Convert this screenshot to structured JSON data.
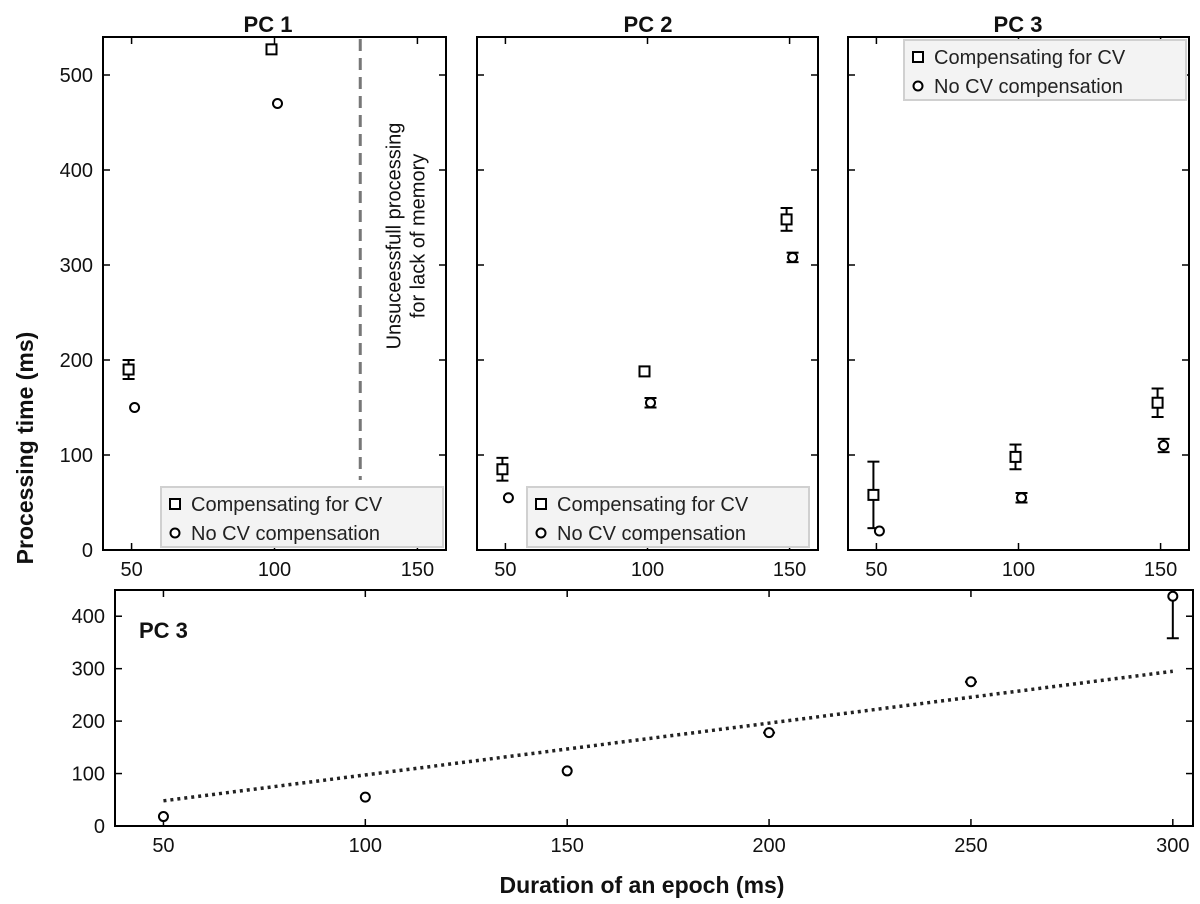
{
  "figure": {
    "ylabel": "Processing time (ms)",
    "xlabel": "Duration of an epoch (ms)"
  },
  "chart_data": [
    {
      "type": "scatter",
      "title": "PC 1",
      "xlim": [
        40,
        160
      ],
      "ylim": [
        0,
        540
      ],
      "xticks": [
        "50",
        "100",
        "150"
      ],
      "yticks": [
        "0",
        "100",
        "200",
        "300",
        "400",
        "500"
      ],
      "annotation": {
        "x": 130,
        "lines": [
          "Unsuceessfull  processing",
          "for lack of memory"
        ]
      },
      "legend": {
        "position": "bottom-right",
        "entries": [
          "Compensating  for CV",
          "No CV compensation"
        ]
      },
      "series": [
        {
          "name": "Compensating  for CV",
          "marker": "square",
          "x": [
            50,
            100
          ],
          "y": [
            190,
            527
          ],
          "err": [
            10,
            0
          ]
        },
        {
          "name": "No CV compensation",
          "marker": "circle",
          "x": [
            50,
            100
          ],
          "y": [
            150,
            470
          ],
          "err": [
            0,
            0
          ]
        }
      ]
    },
    {
      "type": "scatter",
      "title": "PC 2",
      "xlim": [
        40,
        160
      ],
      "ylim": [
        0,
        540
      ],
      "xticks": [
        "50",
        "100",
        "150"
      ],
      "legend": {
        "position": "bottom-left",
        "entries": [
          "Compensating  for CV",
          "No CV compensation"
        ]
      },
      "series": [
        {
          "name": "Compensating  for CV",
          "marker": "square",
          "x": [
            50,
            100,
            150
          ],
          "y": [
            85,
            188,
            348
          ],
          "err": [
            12,
            0,
            12
          ]
        },
        {
          "name": "No CV compensation",
          "marker": "circle",
          "x": [
            50,
            100,
            150
          ],
          "y": [
            55,
            155,
            308
          ],
          "err": [
            0,
            5,
            5
          ]
        }
      ]
    },
    {
      "type": "scatter",
      "title": "PC 3",
      "xlim": [
        40,
        160
      ],
      "ylim": [
        0,
        540
      ],
      "xticks": [
        "50",
        "100",
        "150"
      ],
      "legend": {
        "position": "top-right",
        "entries": [
          "Compensating  for CV",
          "No CV compensation"
        ]
      },
      "series": [
        {
          "name": "Compensating  for CV",
          "marker": "square",
          "x": [
            50,
            100,
            150
          ],
          "y": [
            58,
            98,
            155
          ],
          "err": [
            35,
            13,
            15
          ]
        },
        {
          "name": "No CV compensation",
          "marker": "circle",
          "x": [
            50,
            100,
            150
          ],
          "y": [
            20,
            55,
            110
          ],
          "err": [
            0,
            5,
            7
          ]
        }
      ]
    },
    {
      "type": "scatter",
      "title": "PC 3",
      "xlim": [
        38,
        305
      ],
      "ylim": [
        0,
        450
      ],
      "xticks": [
        "50",
        "100",
        "150",
        "200",
        "250",
        "300"
      ],
      "yticks": [
        "0",
        "100",
        "200",
        "300",
        "400"
      ],
      "series": [
        {
          "marker": "circle",
          "x": [
            50,
            100,
            150,
            200,
            250,
            300
          ],
          "y": [
            18,
            55,
            105,
            178,
            275,
            438
          ],
          "err": [
            0,
            0,
            0,
            12,
            12,
            0
          ],
          "err_low": [
            0,
            0,
            0,
            0,
            0,
            80
          ]
        }
      ],
      "trendline": {
        "style": "dotted",
        "x": [
          50,
          300
        ],
        "y": [
          48,
          295
        ]
      }
    }
  ]
}
